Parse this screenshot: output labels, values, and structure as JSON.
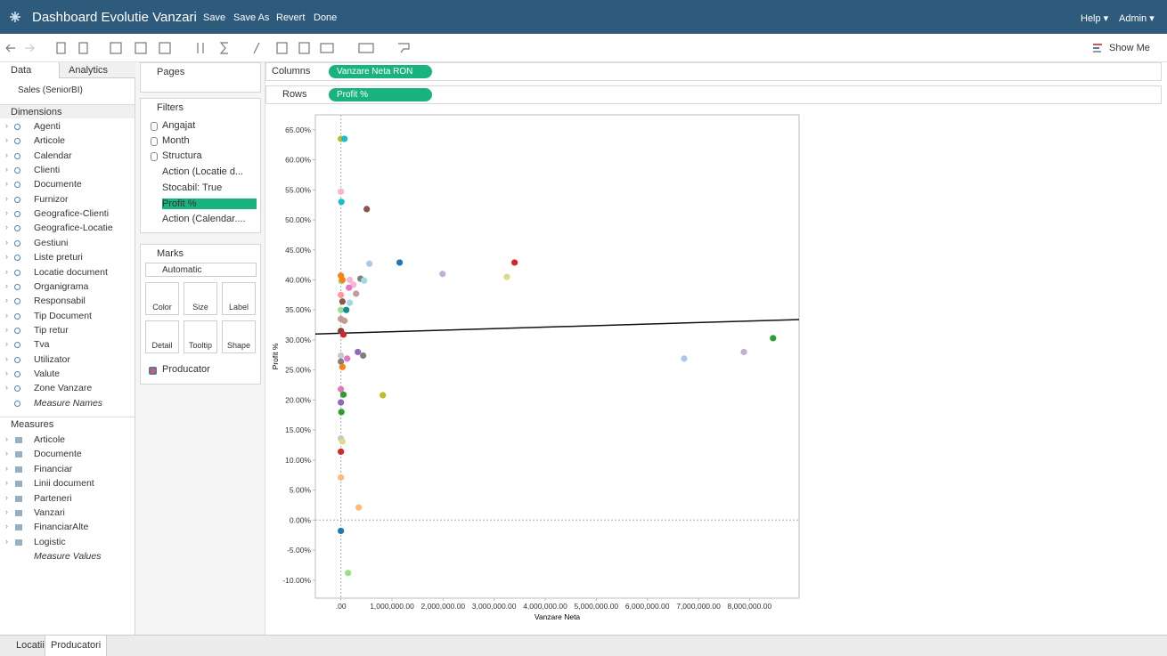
{
  "ui": {
    "header": {
      "title": "Dashboard Evolutie Vanzari",
      "actions": [
        "Save",
        "Save As",
        "Revert",
        "Done"
      ],
      "menus": [
        "Help ▾",
        "Admin ▾"
      ]
    },
    "toolbar": {
      "show_me": "Show Me"
    },
    "data_pane": {
      "tabs": [
        "Data",
        "Analytics"
      ],
      "source": "Sales (SeniorBI)",
      "dimensions_title": "Dimensions",
      "dimensions": [
        "Agenti",
        "Articole",
        "Calendar",
        "Clienti",
        "Documente",
        "Furnizor",
        "Geografice-Clienti",
        "Geografice-Locatie",
        "Gestiuni",
        "Liste preturi",
        "Locatie document",
        "Organigrama",
        "Responsabil",
        "Tip Document",
        "Tip retur",
        "Tva",
        "Utilizator",
        "Valute",
        "Zone Vanzare",
        "Measure Names"
      ],
      "measures_title": "Measures",
      "measures": [
        "Articole",
        "Documente",
        "Financiar",
        "Linii document",
        "Parteneri",
        "Vanzari",
        "FinanciarAlte",
        "Logistic",
        "Measure Values"
      ]
    },
    "cards": {
      "pages": "Pages",
      "filters": "Filters",
      "filter_pills": [
        "Angajat",
        "Month",
        "Structura",
        "Action (Locatie d...",
        "Stocabil: True",
        "Profit %",
        "Action (Calendar...."
      ],
      "marks": "Marks",
      "mark_type": "Automatic",
      "mark_buttons": [
        "Color",
        "Size",
        "Label",
        "Detail",
        "Tooltip",
        "Shape"
      ],
      "mark_pill": "Producator"
    },
    "shelves": {
      "columns": "Columns",
      "columns_pill": "Vanzare Neta RON",
      "rows": "Rows",
      "rows_pill": "Profit %"
    },
    "sheet_tabs": [
      "Locatii",
      "Producatori"
    ]
  },
  "chart_data": {
    "type": "scatter",
    "x_label": "Vanzare Neta",
    "y_label": "Profit %",
    "xlim": [
      -500000,
      8970000
    ],
    "xticks": [
      {
        "value": 0,
        "label": ".00"
      },
      {
        "value": 1000000,
        "label": "1,000,000.00"
      },
      {
        "value": 2000000,
        "label": "2,000,000.00"
      },
      {
        "value": 3000000,
        "label": "3,000,000.00"
      },
      {
        "value": 4000000,
        "label": "4,000,000.00"
      },
      {
        "value": 5000000,
        "label": "5,000,000.00"
      },
      {
        "value": 6000000,
        "label": "6,000,000.00"
      },
      {
        "value": 7000000,
        "label": "7,000,000.00"
      },
      {
        "value": 8000000,
        "label": "8,000,000.00"
      }
    ],
    "ylim": [
      -13,
      67.5
    ],
    "yticks": [
      {
        "value": -10,
        "label": "-10.00%"
      },
      {
        "value": -5,
        "label": "-5.00%"
      },
      {
        "value": 0,
        "label": "0.00%"
      },
      {
        "value": 5,
        "label": "5.00%"
      },
      {
        "value": 10,
        "label": "10.00%"
      },
      {
        "value": 15,
        "label": "15.00%"
      },
      {
        "value": 20,
        "label": "20.00%"
      },
      {
        "value": 25,
        "label": "25.00%"
      },
      {
        "value": 30,
        "label": "30.00%"
      },
      {
        "value": 35,
        "label": "35.00%"
      },
      {
        "value": 40,
        "label": "40.00%"
      },
      {
        "value": 45,
        "label": "45.00%"
      },
      {
        "value": 50,
        "label": "50.00%"
      },
      {
        "value": 55,
        "label": "55.00%"
      },
      {
        "value": 60,
        "label": "60.00%"
      },
      {
        "value": 65,
        "label": "65.00%"
      }
    ],
    "zero_lines": true,
    "x": [
      0,
      70000,
      0,
      10000,
      506000,
      1150000,
      558000,
      1990000,
      3400000,
      3250000,
      0,
      10000,
      30000,
      175000,
      244000,
      384000,
      454000,
      157000,
      297000,
      0,
      175000,
      30000,
      0,
      105000,
      0,
      70000,
      0,
      50000,
      8460000,
      6720000,
      7890000,
      332000,
      436000,
      0,
      122000,
      0,
      30000,
      0,
      50000,
      0,
      10000,
      820000,
      0,
      30000,
      0,
      0,
      349000,
      0,
      140000
    ],
    "y": [
      63.5,
      63.5,
      54.7,
      53.0,
      51.8,
      42.9,
      42.7,
      41.0,
      42.9,
      40.5,
      40.7,
      39.8,
      40.0,
      40.0,
      39.2,
      40.2,
      39.9,
      38.7,
      37.7,
      37.5,
      36.2,
      36.4,
      35.0,
      35.0,
      33.5,
      33.2,
      31.5,
      30.9,
      30.3,
      26.9,
      28.0,
      28.0,
      27.4,
      27.4,
      26.9,
      26.4,
      25.5,
      21.8,
      20.9,
      19.6,
      18.0,
      20.8,
      13.6,
      13.1,
      11.4,
      7.1,
      2.1,
      -1.8,
      -8.8
    ],
    "point_colors": [
      "#bcbd22",
      "#17becf",
      "#f7b6d2",
      "#17becf",
      "#8c564b",
      "#1f77b4",
      "#aec7e8",
      "#c5b0d5",
      "#d62728",
      "#dbdb8d",
      "#ff7f0e",
      "#98df8a",
      "#ff7f0e",
      "#f7b6d2",
      "#f7b6d2",
      "#7f7f7f",
      "#9edae5",
      "#e377c2",
      "#c49c94",
      "#ff9896",
      "#9edae5",
      "#8c564b",
      "#98df8a",
      "#138d90",
      "#c49c94",
      "#c49c94",
      "#8b3a3a",
      "#d62728",
      "#2ca02c",
      "#aec7e8",
      "#c5b0d5",
      "#9467bd",
      "#7f7f7f",
      "#c7c7c7",
      "#e377c2",
      "#7f7f7f",
      "#ff7f0e",
      "#e377c2",
      "#2ca02c",
      "#9467bd",
      "#2ca02c",
      "#bcbd22",
      "#c7c7c7",
      "#dbdb8d",
      "#d62728",
      "#ffbb78",
      "#ffbb78",
      "#1f77b4",
      "#98df8a"
    ],
    "trend_line": {
      "x": [
        -500000,
        8970000
      ],
      "y": [
        31.0,
        33.4
      ],
      "color": "#111111"
    }
  }
}
